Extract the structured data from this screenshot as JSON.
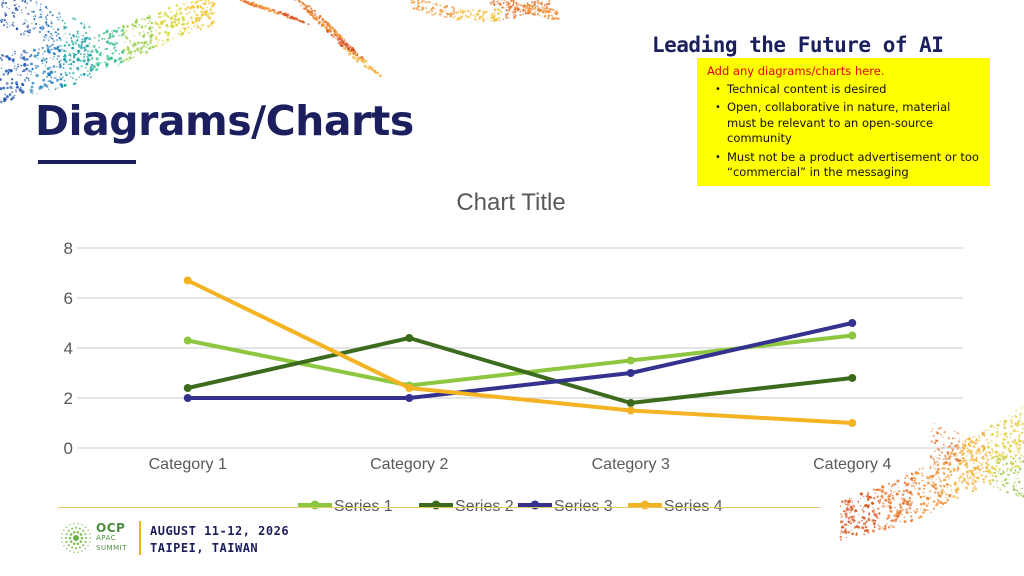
{
  "slide": {
    "tagline": "Leading the Future of AI",
    "title": "Diagrams/Charts"
  },
  "note_box": {
    "heading": "Add any diagrams/charts here.",
    "bullets": [
      "Technical content is desired",
      "Open, collaborative in nature, material must be relevant to an open-source community",
      "Must not be a product advertisement or too “commercial” in the messaging"
    ]
  },
  "footer": {
    "logo": {
      "name": "OCP",
      "region": "APAC",
      "event": "SUMMIT"
    },
    "dates": "AUGUST 11-12, 2026",
    "location": "TAIPEI, TAIWAN"
  },
  "colors": {
    "navy": "#1c1f5e",
    "note_background": "#ffff00",
    "note_heading": "#e8000b",
    "gridline": "#c8c8c8",
    "axis_text": "#595959"
  },
  "chart_data": {
    "type": "line",
    "title": "Chart Title",
    "categories": [
      "Category 1",
      "Category 2",
      "Category 3",
      "Category 4"
    ],
    "series": [
      {
        "name": "Series 1",
        "values": [
          4.3,
          2.5,
          3.5,
          4.5
        ],
        "color": "#8dc63f"
      },
      {
        "name": "Series 2",
        "values": [
          2.4,
          4.4,
          1.8,
          2.8
        ],
        "color": "#3d6b1e"
      },
      {
        "name": "Series 3",
        "values": [
          2.0,
          2.0,
          3.0,
          5.0
        ],
        "color": "#34318f"
      },
      {
        "name": "Series 4",
        "values": [
          6.7,
          2.4,
          1.5,
          1.0
        ],
        "color": "#f3b323"
      }
    ],
    "ylim": [
      0,
      8
    ],
    "yticks": [
      0,
      2,
      4,
      6,
      8
    ],
    "grid": true,
    "legend": "bottom"
  }
}
